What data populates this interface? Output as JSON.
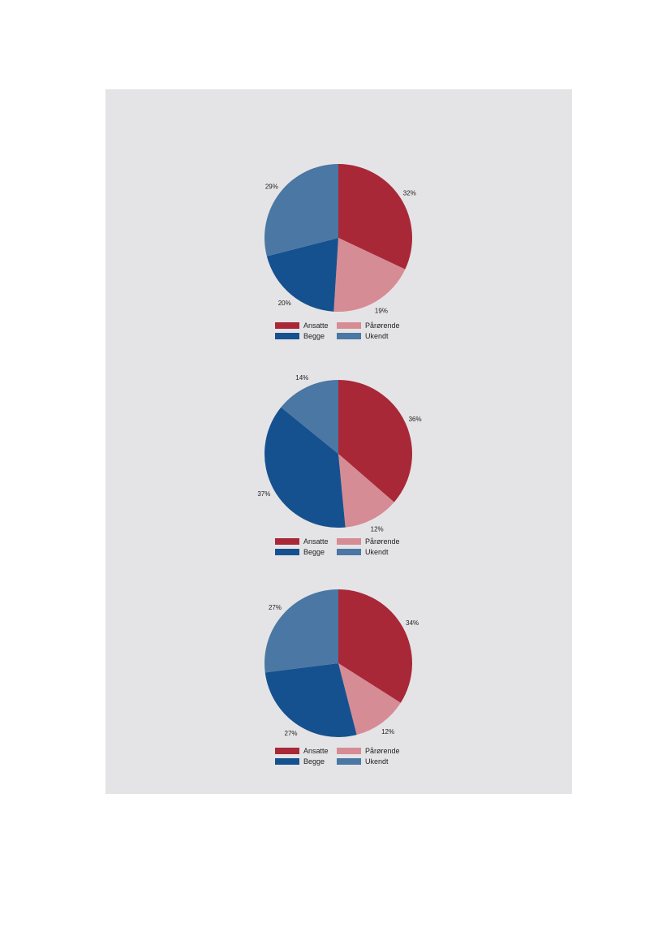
{
  "colors": {
    "Ansatte": "#a82838",
    "Pårørende": "#d68c94",
    "Begge": "#16518f",
    "Ukendt": "#4a77a4"
  },
  "legend": [
    "Ansatte",
    "Pårørende",
    "Begge",
    "Ukendt"
  ],
  "chart_data": [
    {
      "type": "pie",
      "categories": [
        "Ansatte",
        "Pårørende",
        "Begge",
        "Ukendt"
      ],
      "values": [
        32,
        19,
        20,
        29
      ],
      "labels": [
        "32%",
        "19%",
        "20%",
        "29%"
      ]
    },
    {
      "type": "pie",
      "categories": [
        "Ansatte",
        "Pårørende",
        "Begge",
        "Ukendt"
      ],
      "values": [
        36,
        12,
        37,
        14
      ],
      "labels": [
        "36%",
        "12%",
        "37%",
        "14%"
      ]
    },
    {
      "type": "pie",
      "categories": [
        "Ansatte",
        "Pårørende",
        "Begge",
        "Ukendt"
      ],
      "values": [
        34,
        12,
        27,
        27
      ],
      "labels": [
        "34%",
        "12%",
        "27%",
        "27%"
      ]
    }
  ]
}
